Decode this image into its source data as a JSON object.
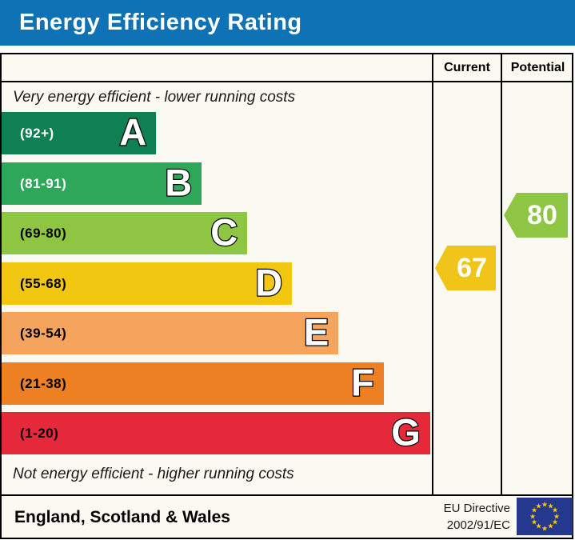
{
  "header": {
    "title": "Energy Efficiency Rating",
    "bg_color": "#0F72B5"
  },
  "table": {
    "current_header": "Current",
    "potential_header": "Potential"
  },
  "notes": {
    "top": "Very energy efficient - lower running costs",
    "bottom": "Not energy efficient - higher running costs"
  },
  "footer": {
    "region": "England, Scotland & Wales",
    "eu_directive_line1": "EU Directive",
    "eu_directive_line2": "2002/91/EC",
    "eu_flag": {
      "bg_color": "#24388D",
      "star_color": "#FFCC00",
      "star_char": "★",
      "star_count": 12
    }
  },
  "chart_data": {
    "type": "bar",
    "title": "Energy Efficiency Rating",
    "bands": [
      {
        "letter": "A",
        "range_label": "(92+)",
        "min": 92,
        "max": 100,
        "color": "#0E8054",
        "label_color": "#FFFFFF",
        "width_pct": 35.9
      },
      {
        "letter": "B",
        "range_label": "(81-91)",
        "min": 81,
        "max": 91,
        "color": "#2EA75A",
        "label_color": "#FFFFFF",
        "width_pct": 46.5
      },
      {
        "letter": "C",
        "range_label": "(69-80)",
        "min": 69,
        "max": 80,
        "color": "#8EC644",
        "label_color": "#000000",
        "width_pct": 57.1
      },
      {
        "letter": "D",
        "range_label": "(55-68)",
        "min": 55,
        "max": 68,
        "color": "#F2C712",
        "label_color": "#000000",
        "width_pct": 67.5
      },
      {
        "letter": "E",
        "range_label": "(39-54)",
        "min": 39,
        "max": 54,
        "color": "#F4A45D",
        "label_color": "#000000",
        "width_pct": 78.3
      },
      {
        "letter": "F",
        "range_label": "(21-38)",
        "min": 21,
        "max": 38,
        "color": "#EC8023",
        "label_color": "#000000",
        "width_pct": 88.8
      },
      {
        "letter": "G",
        "range_label": "(1-20)",
        "min": 1,
        "max": 20,
        "color": "#E5293B",
        "label_color": "#000000",
        "width_pct": 99.6
      }
    ],
    "current": {
      "label": "Current",
      "value": 67,
      "band": "D",
      "color": "#F0C419"
    },
    "potential": {
      "label": "Potential",
      "value": 80,
      "band": "C",
      "color": "#8EC644"
    }
  }
}
